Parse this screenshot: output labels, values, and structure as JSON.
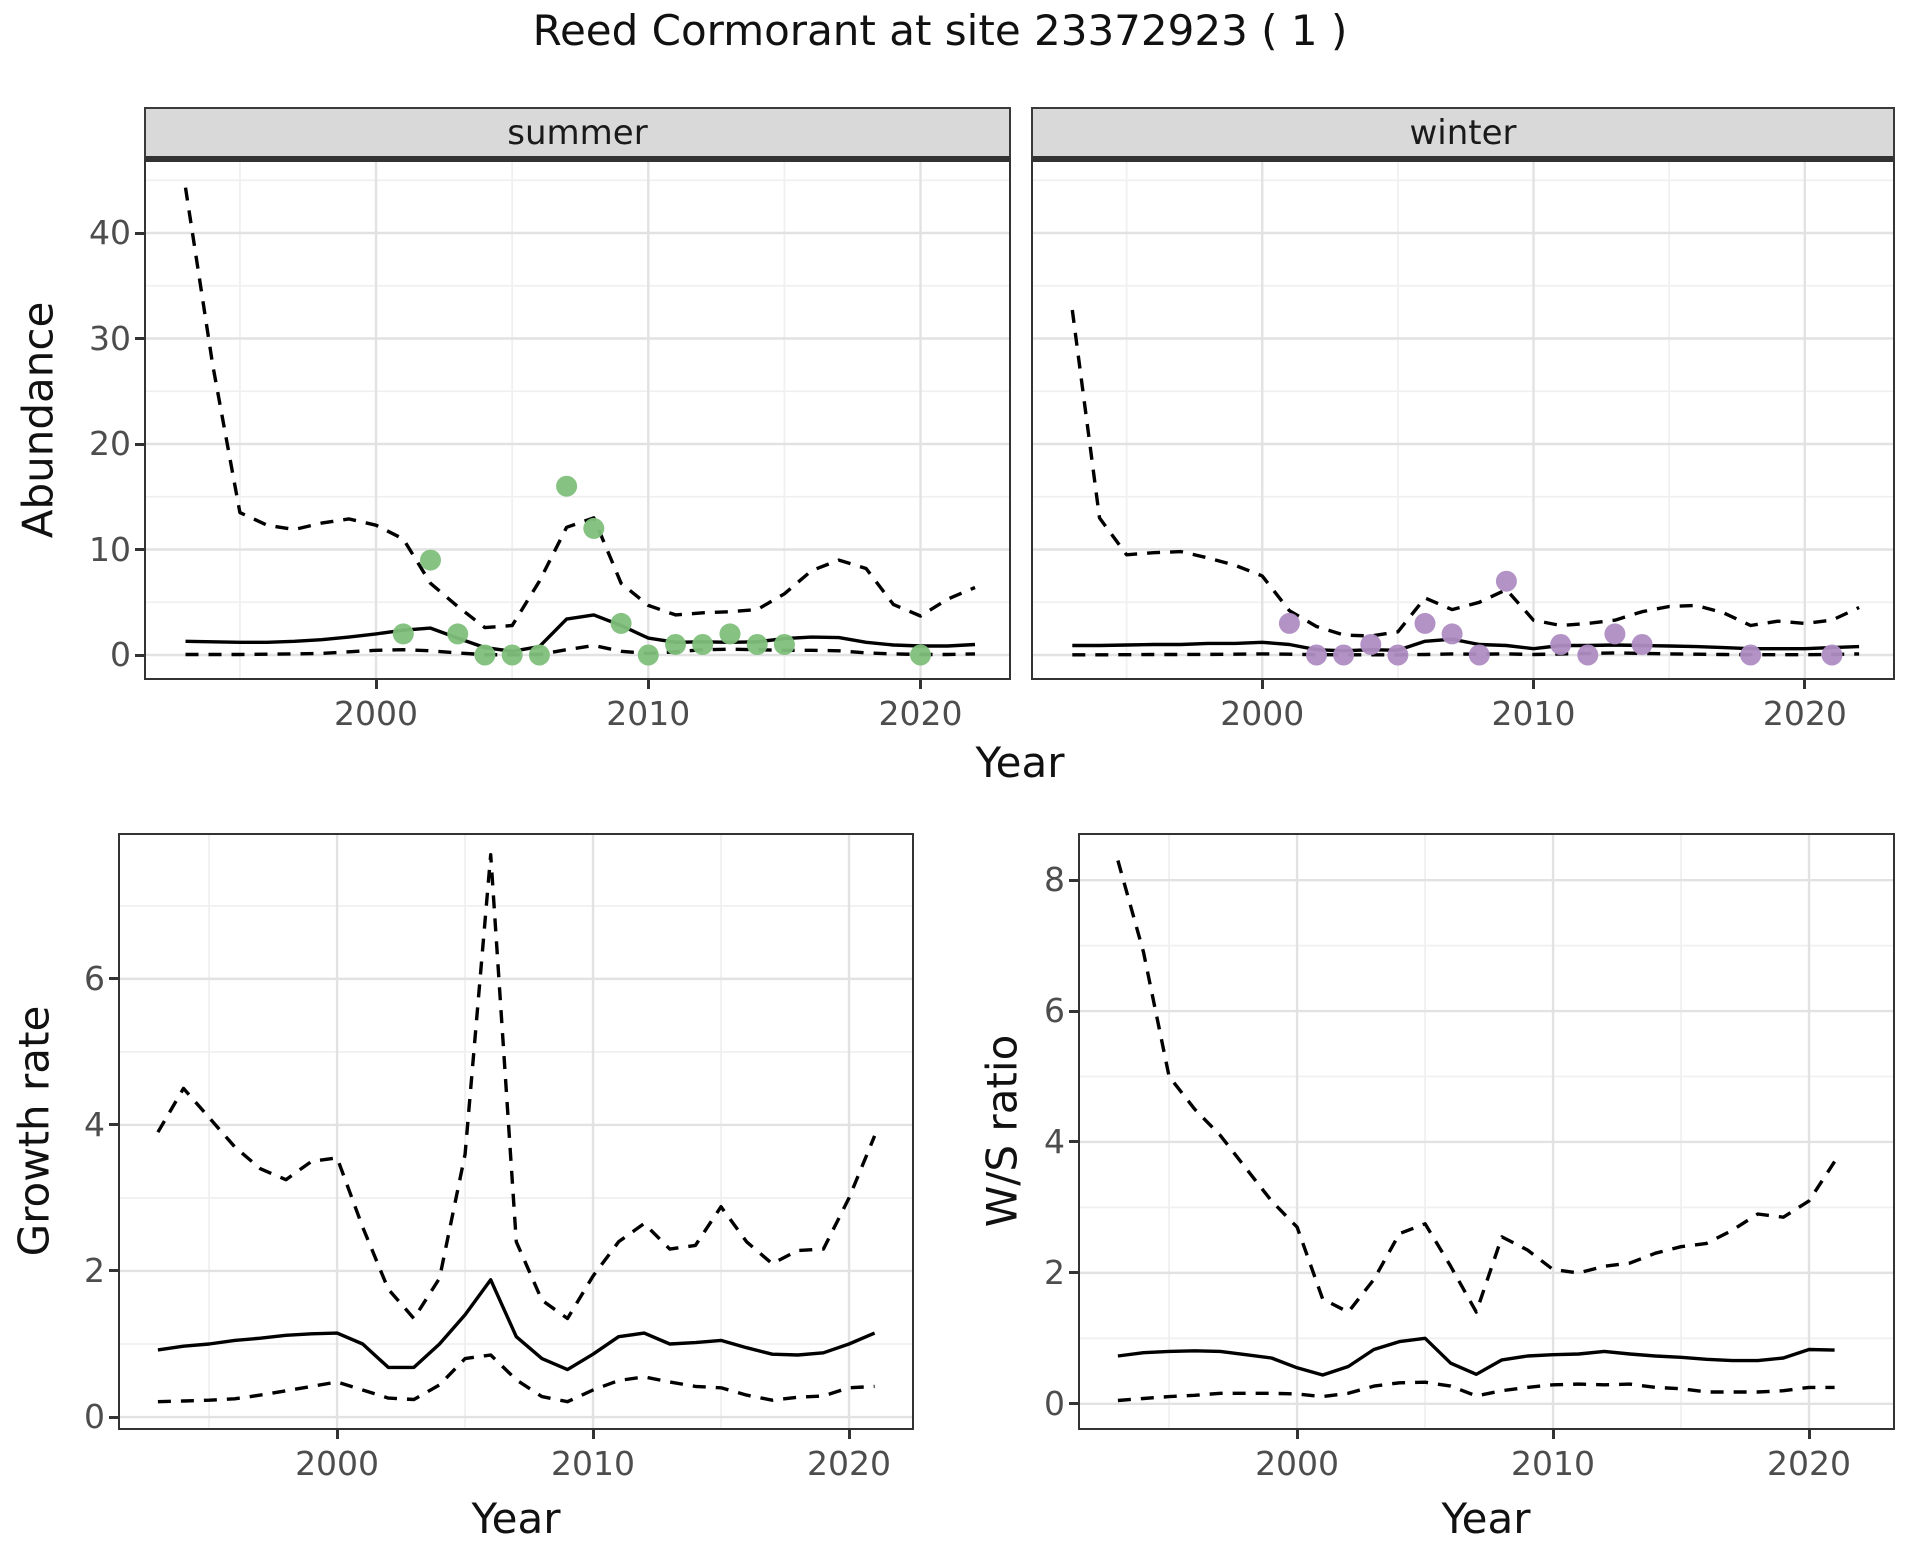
{
  "title": "Reed Cormorant at site 23372923 ( 1 )",
  "colors": {
    "summer_point": "#7fbf7b",
    "winter_point": "#af8dc3",
    "line": "#000000",
    "strip_bg": "#d9d9d9",
    "grid_major": "#e2e2e2",
    "grid_minor": "#f0f0f0",
    "axis_text": "#4d4d4d",
    "panel_border": "#333333"
  },
  "top_figure": {
    "ylabel": "Abundance",
    "xlabel": "Year",
    "facets": [
      "summer",
      "winter"
    ]
  },
  "bottom_left": {
    "ylabel": "Growth rate",
    "xlabel": "Year"
  },
  "bottom_right": {
    "ylabel": "W/S ratio",
    "xlabel": "Year"
  },
  "chart_data": [
    {
      "id": "abundance-summer",
      "type": "line",
      "facet": "summer",
      "ylabel": "Abundance",
      "xlabel": "Year",
      "x_ticks": [
        2000,
        2010,
        2020
      ],
      "x_minor": [
        1995,
        2005,
        2015
      ],
      "y_ticks": [
        0,
        10,
        20,
        30,
        40
      ],
      "y_minor": [
        5,
        15,
        25,
        35,
        45
      ],
      "xlim": [
        1991.55,
        2023.25
      ],
      "ylim": [
        -2.18,
        46.73
      ],
      "x": [
        1993,
        1994,
        1995,
        1996,
        1997,
        1998,
        1999,
        2000,
        2001,
        2002,
        2003,
        2004,
        2005,
        2006,
        2007,
        2008,
        2009,
        2010,
        2011,
        2012,
        2013,
        2014,
        2015,
        2016,
        2017,
        2018,
        2019,
        2020,
        2021,
        2022
      ],
      "series": [
        {
          "name": "median",
          "style": "solid",
          "values": [
            1.3,
            1.25,
            1.2,
            1.2,
            1.3,
            1.45,
            1.7,
            2.0,
            2.35,
            2.55,
            1.6,
            0.7,
            0.35,
            0.8,
            3.4,
            3.8,
            2.8,
            1.6,
            1.2,
            1.25,
            1.2,
            1.25,
            1.55,
            1.7,
            1.65,
            1.2,
            0.95,
            0.85,
            0.85,
            1.0
          ]
        },
        {
          "name": "upper_95ci",
          "style": "dashed",
          "values": [
            44.3,
            27.5,
            13.5,
            12.3,
            11.9,
            12.5,
            12.9,
            12.3,
            11.0,
            6.8,
            4.6,
            2.6,
            2.8,
            7.0,
            12.1,
            13.0,
            6.8,
            4.7,
            3.8,
            4.0,
            4.1,
            4.3,
            5.8,
            8.0,
            9.0,
            8.2,
            4.8,
            3.7,
            5.3,
            6.4
          ]
        },
        {
          "name": "lower_95ci",
          "style": "dashed",
          "values": [
            0.05,
            0.05,
            0.05,
            0.08,
            0.1,
            0.15,
            0.3,
            0.45,
            0.5,
            0.4,
            0.2,
            0.03,
            0.02,
            0.05,
            0.5,
            0.9,
            0.35,
            0.15,
            0.3,
            0.5,
            0.55,
            0.5,
            0.45,
            0.45,
            0.4,
            0.2,
            0.1,
            0.05,
            0.05,
            0.1
          ]
        }
      ],
      "points": {
        "name": "observed-counts-summer",
        "color_key": "summer_point",
        "x": [
          2001,
          2002,
          2003,
          2004,
          2005,
          2006,
          2007,
          2008,
          2009,
          2010,
          2011,
          2012,
          2013,
          2014,
          2015,
          2020
        ],
        "y": [
          2,
          9,
          2,
          0,
          0,
          0,
          16,
          12,
          3,
          0,
          1,
          1,
          2,
          1,
          1,
          0
        ]
      }
    },
    {
      "id": "abundance-winter",
      "type": "line",
      "facet": "winter",
      "ylabel": "Abundance",
      "xlabel": "Year",
      "x_ticks": [
        2000,
        2010,
        2020
      ],
      "x_minor": [
        1995,
        2005,
        2015
      ],
      "y_ticks": [
        0,
        10,
        20,
        30,
        40
      ],
      "y_minor": [
        5,
        15,
        25,
        35,
        45
      ],
      "xlim": [
        1991.55,
        2023.25
      ],
      "ylim": [
        -2.18,
        46.73
      ],
      "x": [
        1993,
        1994,
        1995,
        1996,
        1997,
        1998,
        1999,
        2000,
        2001,
        2002,
        2003,
        2004,
        2005,
        2006,
        2007,
        2008,
        2009,
        2010,
        2011,
        2012,
        2013,
        2014,
        2015,
        2016,
        2017,
        2018,
        2019,
        2020,
        2021,
        2022
      ],
      "series": [
        {
          "name": "median",
          "style": "solid",
          "values": [
            0.9,
            0.9,
            0.95,
            1.0,
            1.0,
            1.1,
            1.1,
            1.2,
            1.0,
            0.5,
            0.4,
            0.5,
            0.45,
            1.3,
            1.5,
            1.0,
            0.9,
            0.6,
            0.9,
            0.9,
            0.95,
            0.9,
            0.85,
            0.8,
            0.7,
            0.6,
            0.6,
            0.6,
            0.7,
            0.8
          ]
        },
        {
          "name": "upper_95ci",
          "style": "dashed",
          "values": [
            32.7,
            13.0,
            9.5,
            9.7,
            9.8,
            9.2,
            8.5,
            7.5,
            4.2,
            2.7,
            1.9,
            1.8,
            2.2,
            5.4,
            4.3,
            5.0,
            6.2,
            3.3,
            2.8,
            3.0,
            3.3,
            4.1,
            4.6,
            4.7,
            4.0,
            2.8,
            3.2,
            3.0,
            3.3,
            4.5
          ]
        },
        {
          "name": "lower_95ci",
          "style": "dashed",
          "values": [
            0.02,
            0.02,
            0.03,
            0.05,
            0.05,
            0.06,
            0.08,
            0.1,
            0.08,
            0.03,
            0.02,
            0.02,
            0.02,
            0.05,
            0.1,
            0.08,
            0.1,
            0.05,
            0.1,
            0.15,
            0.2,
            0.15,
            0.1,
            0.08,
            0.05,
            0.03,
            0.03,
            0.03,
            0.05,
            0.1
          ]
        }
      ],
      "points": {
        "name": "observed-counts-winter",
        "color_key": "winter_point",
        "x": [
          2001,
          2002,
          2003,
          2004,
          2005,
          2006,
          2007,
          2008,
          2009,
          2011,
          2012,
          2013,
          2014,
          2018,
          2021
        ],
        "y": [
          3,
          0,
          0,
          1,
          0,
          3,
          2,
          0,
          7,
          1,
          0,
          2,
          1,
          0,
          0
        ]
      }
    },
    {
      "id": "growth-rate",
      "type": "line",
      "facet": "",
      "ylabel": "Growth rate",
      "xlabel": "Year",
      "x_ticks": [
        2000,
        2010,
        2020
      ],
      "x_minor": [
        1995,
        2005,
        2015
      ],
      "y_ticks": [
        0,
        2,
        4,
        6
      ],
      "y_minor": [
        1,
        3,
        5,
        7
      ],
      "xlim": [
        1991.52,
        2022.46
      ],
      "ylim": [
        -0.15,
        7.97
      ],
      "x": [
        1993,
        1994,
        1995,
        1996,
        1997,
        1998,
        1999,
        2000,
        2001,
        2002,
        2003,
        2004,
        2005,
        2006,
        2007,
        2008,
        2009,
        2010,
        2011,
        2012,
        2013,
        2014,
        2015,
        2016,
        2017,
        2018,
        2019,
        2020,
        2021
      ],
      "series": [
        {
          "name": "median",
          "style": "solid",
          "values": [
            0.92,
            0.97,
            1.0,
            1.05,
            1.08,
            1.12,
            1.14,
            1.15,
            1.0,
            0.68,
            0.68,
            1.0,
            1.4,
            1.88,
            1.1,
            0.8,
            0.65,
            0.86,
            1.1,
            1.15,
            1.0,
            1.02,
            1.05,
            0.95,
            0.86,
            0.85,
            0.88,
            1.0,
            1.15
          ]
        },
        {
          "name": "upper_95ci",
          "style": "dashed",
          "values": [
            3.9,
            4.5,
            4.1,
            3.7,
            3.4,
            3.25,
            3.5,
            3.55,
            2.6,
            1.75,
            1.35,
            1.9,
            3.6,
            7.7,
            2.4,
            1.6,
            1.35,
            1.93,
            2.4,
            2.65,
            2.3,
            2.35,
            2.88,
            2.4,
            2.1,
            2.28,
            2.3,
            3.0,
            3.85
          ]
        },
        {
          "name": "lower_95ci",
          "style": "dashed",
          "values": [
            0.21,
            0.22,
            0.23,
            0.25,
            0.3,
            0.36,
            0.42,
            0.48,
            0.37,
            0.26,
            0.24,
            0.44,
            0.8,
            0.85,
            0.51,
            0.28,
            0.21,
            0.37,
            0.5,
            0.55,
            0.48,
            0.42,
            0.4,
            0.3,
            0.23,
            0.27,
            0.29,
            0.4,
            0.42
          ]
        }
      ],
      "points": null
    },
    {
      "id": "ws-ratio",
      "type": "line",
      "facet": "",
      "ylabel": "W/S ratio",
      "xlabel": "Year",
      "x_ticks": [
        2000,
        2010,
        2020
      ],
      "x_minor": [
        1995,
        2005,
        2015
      ],
      "y_ticks": [
        0,
        2,
        4,
        6,
        8
      ],
      "y_minor": [
        1,
        3,
        5,
        7
      ],
      "xlim": [
        1991.52,
        2023.28
      ],
      "ylim": [
        -0.37,
        8.69
      ],
      "x": [
        1993,
        1994,
        1995,
        1996,
        1997,
        1998,
        1999,
        2000,
        2001,
        2002,
        2003,
        2004,
        2005,
        2006,
        2007,
        2008,
        2009,
        2010,
        2011,
        2012,
        2013,
        2014,
        2015,
        2016,
        2017,
        2018,
        2019,
        2020,
        2021
      ],
      "series": [
        {
          "name": "median",
          "style": "solid",
          "values": [
            0.73,
            0.78,
            0.8,
            0.81,
            0.8,
            0.75,
            0.7,
            0.55,
            0.44,
            0.57,
            0.83,
            0.95,
            1.0,
            0.62,
            0.45,
            0.67,
            0.73,
            0.75,
            0.76,
            0.8,
            0.76,
            0.73,
            0.71,
            0.68,
            0.66,
            0.66,
            0.7,
            0.83,
            0.82
          ]
        },
        {
          "name": "upper_95ci",
          "style": "dashed",
          "values": [
            8.3,
            6.9,
            5.0,
            4.5,
            4.1,
            3.6,
            3.1,
            2.7,
            1.6,
            1.4,
            1.9,
            2.6,
            2.75,
            2.1,
            1.4,
            2.55,
            2.35,
            2.05,
            2.0,
            2.1,
            2.15,
            2.3,
            2.4,
            2.45,
            2.65,
            2.9,
            2.85,
            3.1,
            3.7
          ]
        },
        {
          "name": "lower_95ci",
          "style": "dashed",
          "values": [
            0.05,
            0.08,
            0.11,
            0.13,
            0.16,
            0.16,
            0.16,
            0.15,
            0.11,
            0.16,
            0.27,
            0.32,
            0.33,
            0.27,
            0.12,
            0.2,
            0.25,
            0.29,
            0.3,
            0.29,
            0.3,
            0.25,
            0.23,
            0.18,
            0.18,
            0.18,
            0.2,
            0.25,
            0.25
          ]
        }
      ],
      "points": null
    }
  ]
}
